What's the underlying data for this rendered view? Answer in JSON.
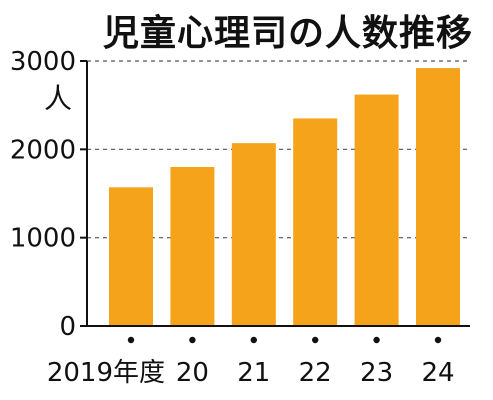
{
  "chart_data": {
    "type": "bar",
    "title": "児童心理司の人数推移",
    "y_unit": "人",
    "categories": [
      "2019年度",
      "20",
      "21",
      "22",
      "23",
      "24"
    ],
    "values": [
      1570,
      1800,
      2070,
      2350,
      2620,
      2920
    ],
    "ylim": [
      0,
      3000
    ],
    "yticks": [
      0,
      1000,
      2000,
      3000
    ],
    "grid": true,
    "bar_color": "#F5A31A"
  }
}
